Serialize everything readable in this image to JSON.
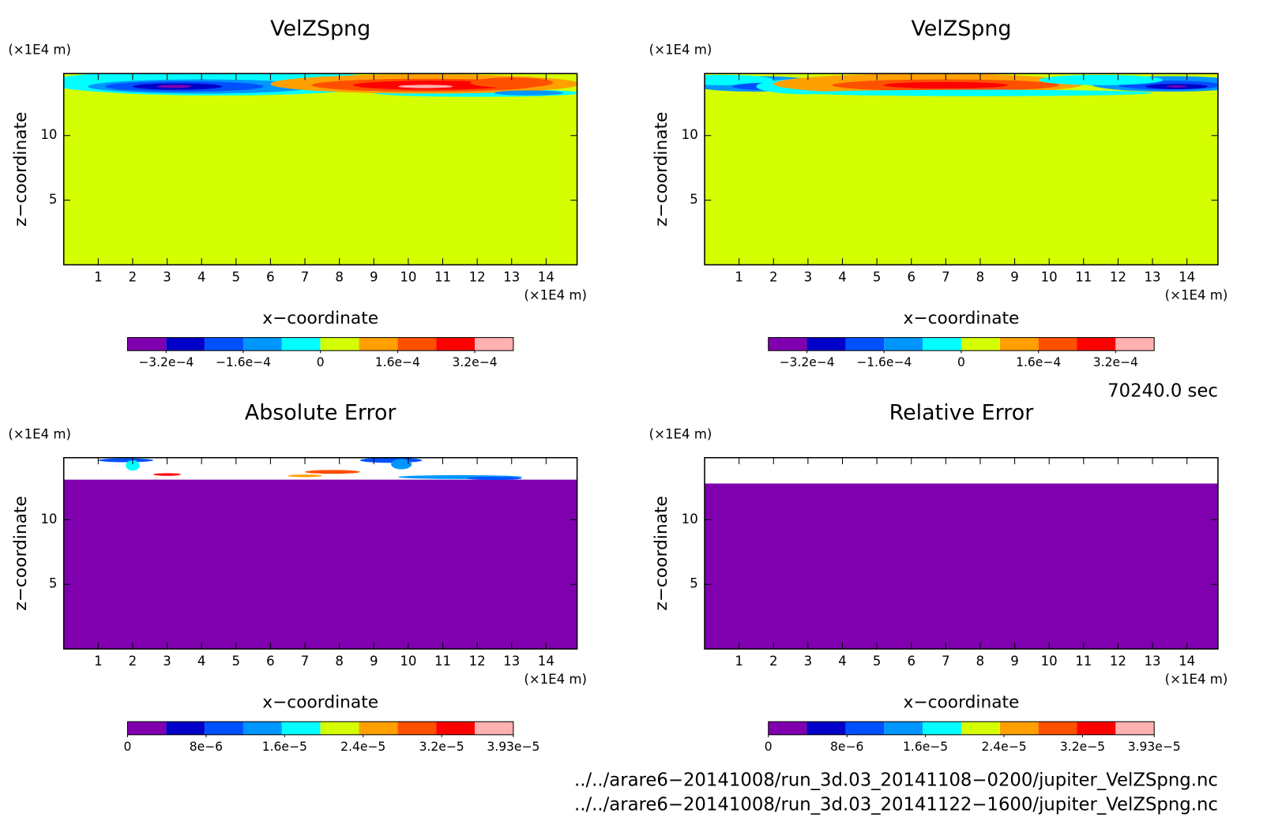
{
  "chart_data": [
    {
      "type": "contour",
      "title": "VelZSpng",
      "xlabel": "x−coordinate",
      "ylabel": "z−coordinate",
      "xunit": "(×1E4 m)",
      "yunit": "(×1E4 m)",
      "xlim": [
        0,
        14.9
      ],
      "ylim": [
        0,
        14.8
      ],
      "xticks": [
        1,
        2,
        3,
        4,
        5,
        6,
        7,
        8,
        9,
        10,
        11,
        12,
        13,
        14
      ],
      "yticks": [
        5,
        10
      ],
      "colorbar": {
        "colors": [
          "#8000b0",
          "#0000c8",
          "#0050ff",
          "#0096ff",
          "#00ffff",
          "#d4ff00",
          "#ffa000",
          "#ff5000",
          "#ff0000",
          "#ffb0b0"
        ],
        "lim": [
          -0.0004,
          0.0004
        ],
        "ticks": [
          {
            "value": -0.00032,
            "label": "−3.2e−4"
          },
          {
            "value": -0.00016,
            "label": "−1.6e−4"
          },
          0,
          {
            "value": 0.00016,
            "label": "1.6e−4"
          },
          {
            "value": 0.00032,
            "label": "3.2e−4"
          }
        ]
      }
    },
    {
      "type": "contour",
      "title": "VelZSpng",
      "xlabel": "x−coordinate",
      "ylabel": "z−coordinate",
      "xunit": "(×1E4 m)",
      "yunit": "(×1E4 m)",
      "xlim": [
        0,
        14.9
      ],
      "ylim": [
        0,
        14.8
      ],
      "xticks": [
        1,
        2,
        3,
        4,
        5,
        6,
        7,
        8,
        9,
        10,
        11,
        12,
        13,
        14
      ],
      "yticks": [
        5,
        10
      ],
      "colorbar": {
        "colors": [
          "#8000b0",
          "#0000c8",
          "#0050ff",
          "#0096ff",
          "#00ffff",
          "#d4ff00",
          "#ffa000",
          "#ff5000",
          "#ff0000",
          "#ffb0b0"
        ],
        "lim": [
          -0.0004,
          0.0004
        ],
        "ticks": [
          {
            "value": -0.00032,
            "label": "−3.2e−4"
          },
          {
            "value": -0.00016,
            "label": "−1.6e−4"
          },
          0,
          {
            "value": 0.00016,
            "label": "1.6e−4"
          },
          {
            "value": 0.00032,
            "label": "3.2e−4"
          }
        ]
      }
    },
    {
      "type": "contour",
      "title": "Absolute Error",
      "xlabel": "x−coordinate",
      "ylabel": "z−coordinate",
      "xunit": "(×1E4 m)",
      "yunit": "(×1E4 m)",
      "xlim": [
        0,
        14.9
      ],
      "ylim": [
        0,
        14.8
      ],
      "xticks": [
        1,
        2,
        3,
        4,
        5,
        6,
        7,
        8,
        9,
        10,
        11,
        12,
        13,
        14
      ],
      "yticks": [
        5,
        10
      ],
      "colorbar": {
        "colors": [
          "#8000b0",
          "#0000c8",
          "#0050ff",
          "#0096ff",
          "#00ffff",
          "#d4ff00",
          "#ffa000",
          "#ff5000",
          "#ff0000",
          "#ffb0b0"
        ],
        "lim": [
          0,
          3.93e-05
        ],
        "ticks": [
          0,
          {
            "value": 8e-06,
            "label": "8e−6"
          },
          {
            "value": 1.6e-05,
            "label": "1.6e−5"
          },
          {
            "value": 2.4e-05,
            "label": "2.4e−5"
          },
          {
            "value": 3.2e-05,
            "label": "3.2e−5"
          },
          {
            "value": 3.93e-05,
            "label": "3.93e−5"
          }
        ]
      }
    },
    {
      "type": "contour",
      "title": "Relative Error",
      "xlabel": "x−coordinate",
      "ylabel": "z−coordinate",
      "xunit": "(×1E4 m)",
      "yunit": "(×1E4 m)",
      "xlim": [
        0,
        14.9
      ],
      "ylim": [
        0,
        14.8
      ],
      "xticks": [
        1,
        2,
        3,
        4,
        5,
        6,
        7,
        8,
        9,
        10,
        11,
        12,
        13,
        14
      ],
      "yticks": [
        5,
        10
      ],
      "colorbar": {
        "colors": [
          "#8000b0",
          "#0000c8",
          "#0050ff",
          "#0096ff",
          "#00ffff",
          "#d4ff00",
          "#ffa000",
          "#ff5000",
          "#ff0000",
          "#ffb0b0"
        ],
        "lim": [
          0,
          3.93e-05
        ],
        "ticks": [
          0,
          {
            "value": 8e-06,
            "label": "8e−6"
          },
          {
            "value": 1.6e-05,
            "label": "1.6e−5"
          },
          {
            "value": 2.4e-05,
            "label": "2.4e−5"
          },
          {
            "value": 3.2e-05,
            "label": "3.2e−5"
          },
          {
            "value": 3.93e-05,
            "label": "3.93e−5"
          }
        ]
      }
    }
  ],
  "time": "70240.0 sec",
  "files": [
    "../../arare6−20141008/run_3d.03_20141108−0200/jupiter_VelZSpng.nc",
    "../../arare6−20141008/run_3d.03_20141122−1600/jupiter_VelZSpng.nc"
  ]
}
